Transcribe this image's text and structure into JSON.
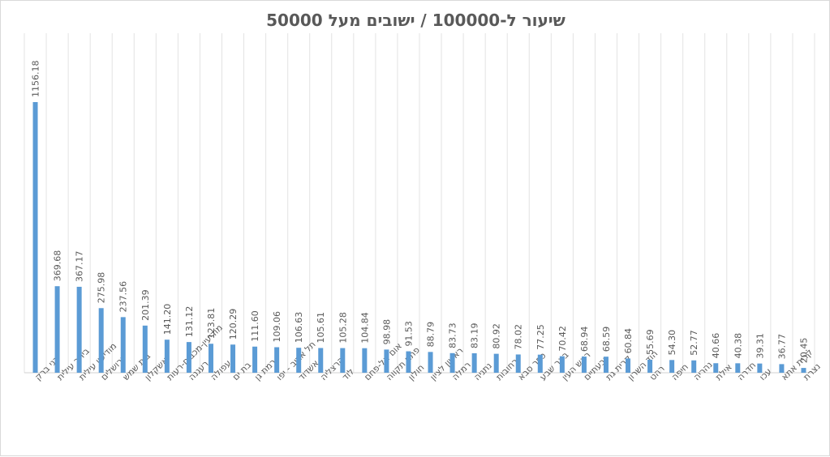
{
  "chart_data": {
    "type": "bar",
    "title": "שיעור ל-100000 / ישובים מעל 50000",
    "xlabel": "",
    "ylabel": "",
    "ylim": [
      0,
      1200
    ],
    "grid": "vertical",
    "legend": "none",
    "bar_color": "#5b9bd5",
    "categories": [
      "בני ברק",
      "ביתר עילית",
      "מודיעין עילית",
      "ירושלים",
      "בית שמש",
      "אשקלון",
      "מודיעין-מכבים-רעות",
      "רעננה",
      "עפולה",
      "בת ים",
      "רמת גן",
      "תל אביב - יפו",
      "אשדוד",
      "הרצליה",
      "לוד",
      "אום אל-פחם",
      "פתח תקווה",
      "חולון",
      "ראשון לציון",
      "רמלה",
      "נתניה",
      "רחובות",
      "כפר סבא",
      "באר שבע",
      "ראש העין",
      "גבעתיים",
      "קרית גת",
      "הוד השרון",
      "רהט",
      "חיפה",
      "נהריה",
      "אילת",
      "חדרה",
      "עכו",
      "קרית אתא",
      "נצרת"
    ],
    "values": [
      1156.18,
      369.68,
      367.17,
      275.98,
      237.56,
      201.39,
      141.2,
      131.12,
      123.81,
      120.29,
      111.6,
      109.06,
      106.63,
      105.61,
      105.28,
      104.84,
      98.98,
      91.53,
      88.79,
      83.73,
      83.19,
      80.92,
      78.02,
      77.25,
      70.42,
      68.94,
      68.59,
      60.84,
      55.69,
      54.3,
      52.77,
      40.66,
      40.38,
      39.31,
      36.77,
      20.45
    ],
    "data_labels": [
      "1156.18",
      "369.68",
      "367.17",
      "275.98",
      "237.56",
      "201.39",
      "141.20",
      "131.12",
      "123.81",
      "120.29",
      "111.60",
      "109.06",
      "106.63",
      "105.61",
      "105.28",
      "104.84",
      "98.98",
      "91.53",
      "88.79",
      "83.73",
      "83.19",
      "80.92",
      "78.02",
      "77.25",
      "70.42",
      "68.94",
      "68.59",
      "60.84",
      "55.69",
      "54.30",
      "52.77",
      "40.66",
      "40.38",
      "39.31",
      "36.77",
      "20.45"
    ]
  }
}
